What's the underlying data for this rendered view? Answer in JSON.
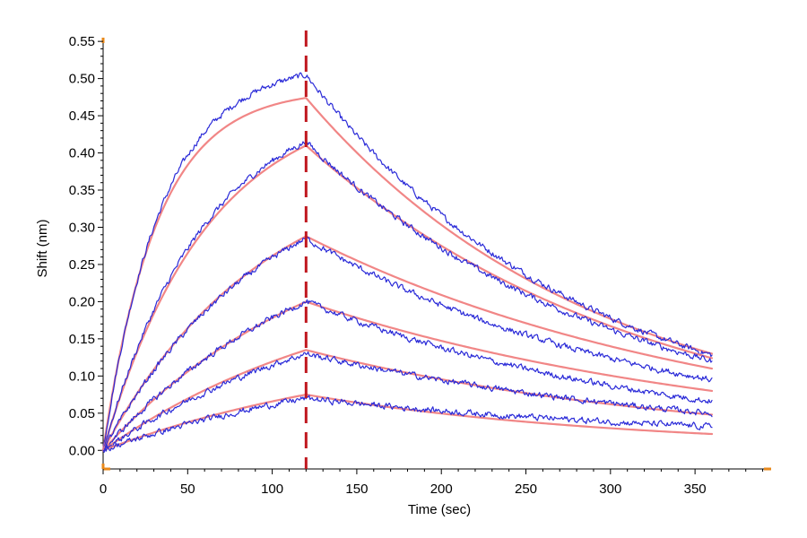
{
  "chart_data": {
    "type": "line",
    "title": "",
    "xlabel": "Time (sec)",
    "ylabel": "Shift (nm)",
    "xlim": [
      0,
      395
    ],
    "ylim": [
      -0.025,
      0.555
    ],
    "x_ticks": [
      "0",
      "50",
      "100",
      "150",
      "200",
      "250",
      "300",
      "350"
    ],
    "y_ticks": [
      "0.00",
      "0.05",
      "0.10",
      "0.15",
      "0.20",
      "0.25",
      "0.30",
      "0.35",
      "0.40",
      "0.45",
      "0.50",
      "0.55"
    ],
    "x_tick_values": [
      0,
      50,
      100,
      150,
      200,
      250,
      300,
      350
    ],
    "y_tick_values": [
      0,
      0.05,
      0.1,
      0.15,
      0.2,
      0.25,
      0.3,
      0.35,
      0.4,
      0.45,
      0.5,
      0.55
    ],
    "grid": false,
    "legend": "none",
    "dissociation_start": 120,
    "x_end": 360,
    "colors": {
      "measured": "#2a2ad8",
      "fit": "#f08080",
      "marker": "#c0181f",
      "axis_corner": "#e8891b"
    },
    "series": [
      {
        "kind": "fit",
        "assoc_end": 0.474,
        "assoc_time_const": 32,
        "diss_end": 0.13,
        "diss_time_const": 170
      },
      {
        "kind": "measured",
        "assoc_end": 0.505,
        "assoc_time_const": 35,
        "diss_end": 0.128,
        "diss_time_const": 165
      },
      {
        "kind": "fit",
        "assoc_end": 0.41,
        "assoc_time_const": 62,
        "diss_end": 0.124,
        "diss_time_const": 200
      },
      {
        "kind": "measured",
        "assoc_end": 0.415,
        "assoc_time_const": 60,
        "diss_end": 0.12,
        "diss_time_const": 185
      },
      {
        "kind": "fit",
        "assoc_end": 0.288,
        "assoc_time_const": 95,
        "diss_end": 0.11,
        "diss_time_const": 250
      },
      {
        "kind": "measured",
        "assoc_end": 0.285,
        "assoc_time_const": 95,
        "diss_end": 0.095,
        "diss_time_const": 200
      },
      {
        "kind": "fit",
        "assoc_end": 0.2,
        "assoc_time_const": 130,
        "diss_end": 0.08,
        "diss_time_const": 260
      },
      {
        "kind": "measured",
        "assoc_end": 0.2,
        "assoc_time_const": 130,
        "diss_end": 0.066,
        "diss_time_const": 215
      },
      {
        "kind": "fit",
        "assoc_end": 0.135,
        "assoc_time_const": 150,
        "diss_end": 0.048,
        "diss_time_const": 230
      },
      {
        "kind": "measured",
        "assoc_end": 0.13,
        "assoc_time_const": 150,
        "diss_end": 0.05,
        "diss_time_const": 250
      },
      {
        "kind": "fit",
        "assoc_end": 0.075,
        "assoc_time_const": 170,
        "diss_end": 0.022,
        "diss_time_const": 190
      },
      {
        "kind": "measured",
        "assoc_end": 0.07,
        "assoc_time_const": 170,
        "diss_end": 0.032,
        "diss_time_const": 260
      }
    ]
  }
}
